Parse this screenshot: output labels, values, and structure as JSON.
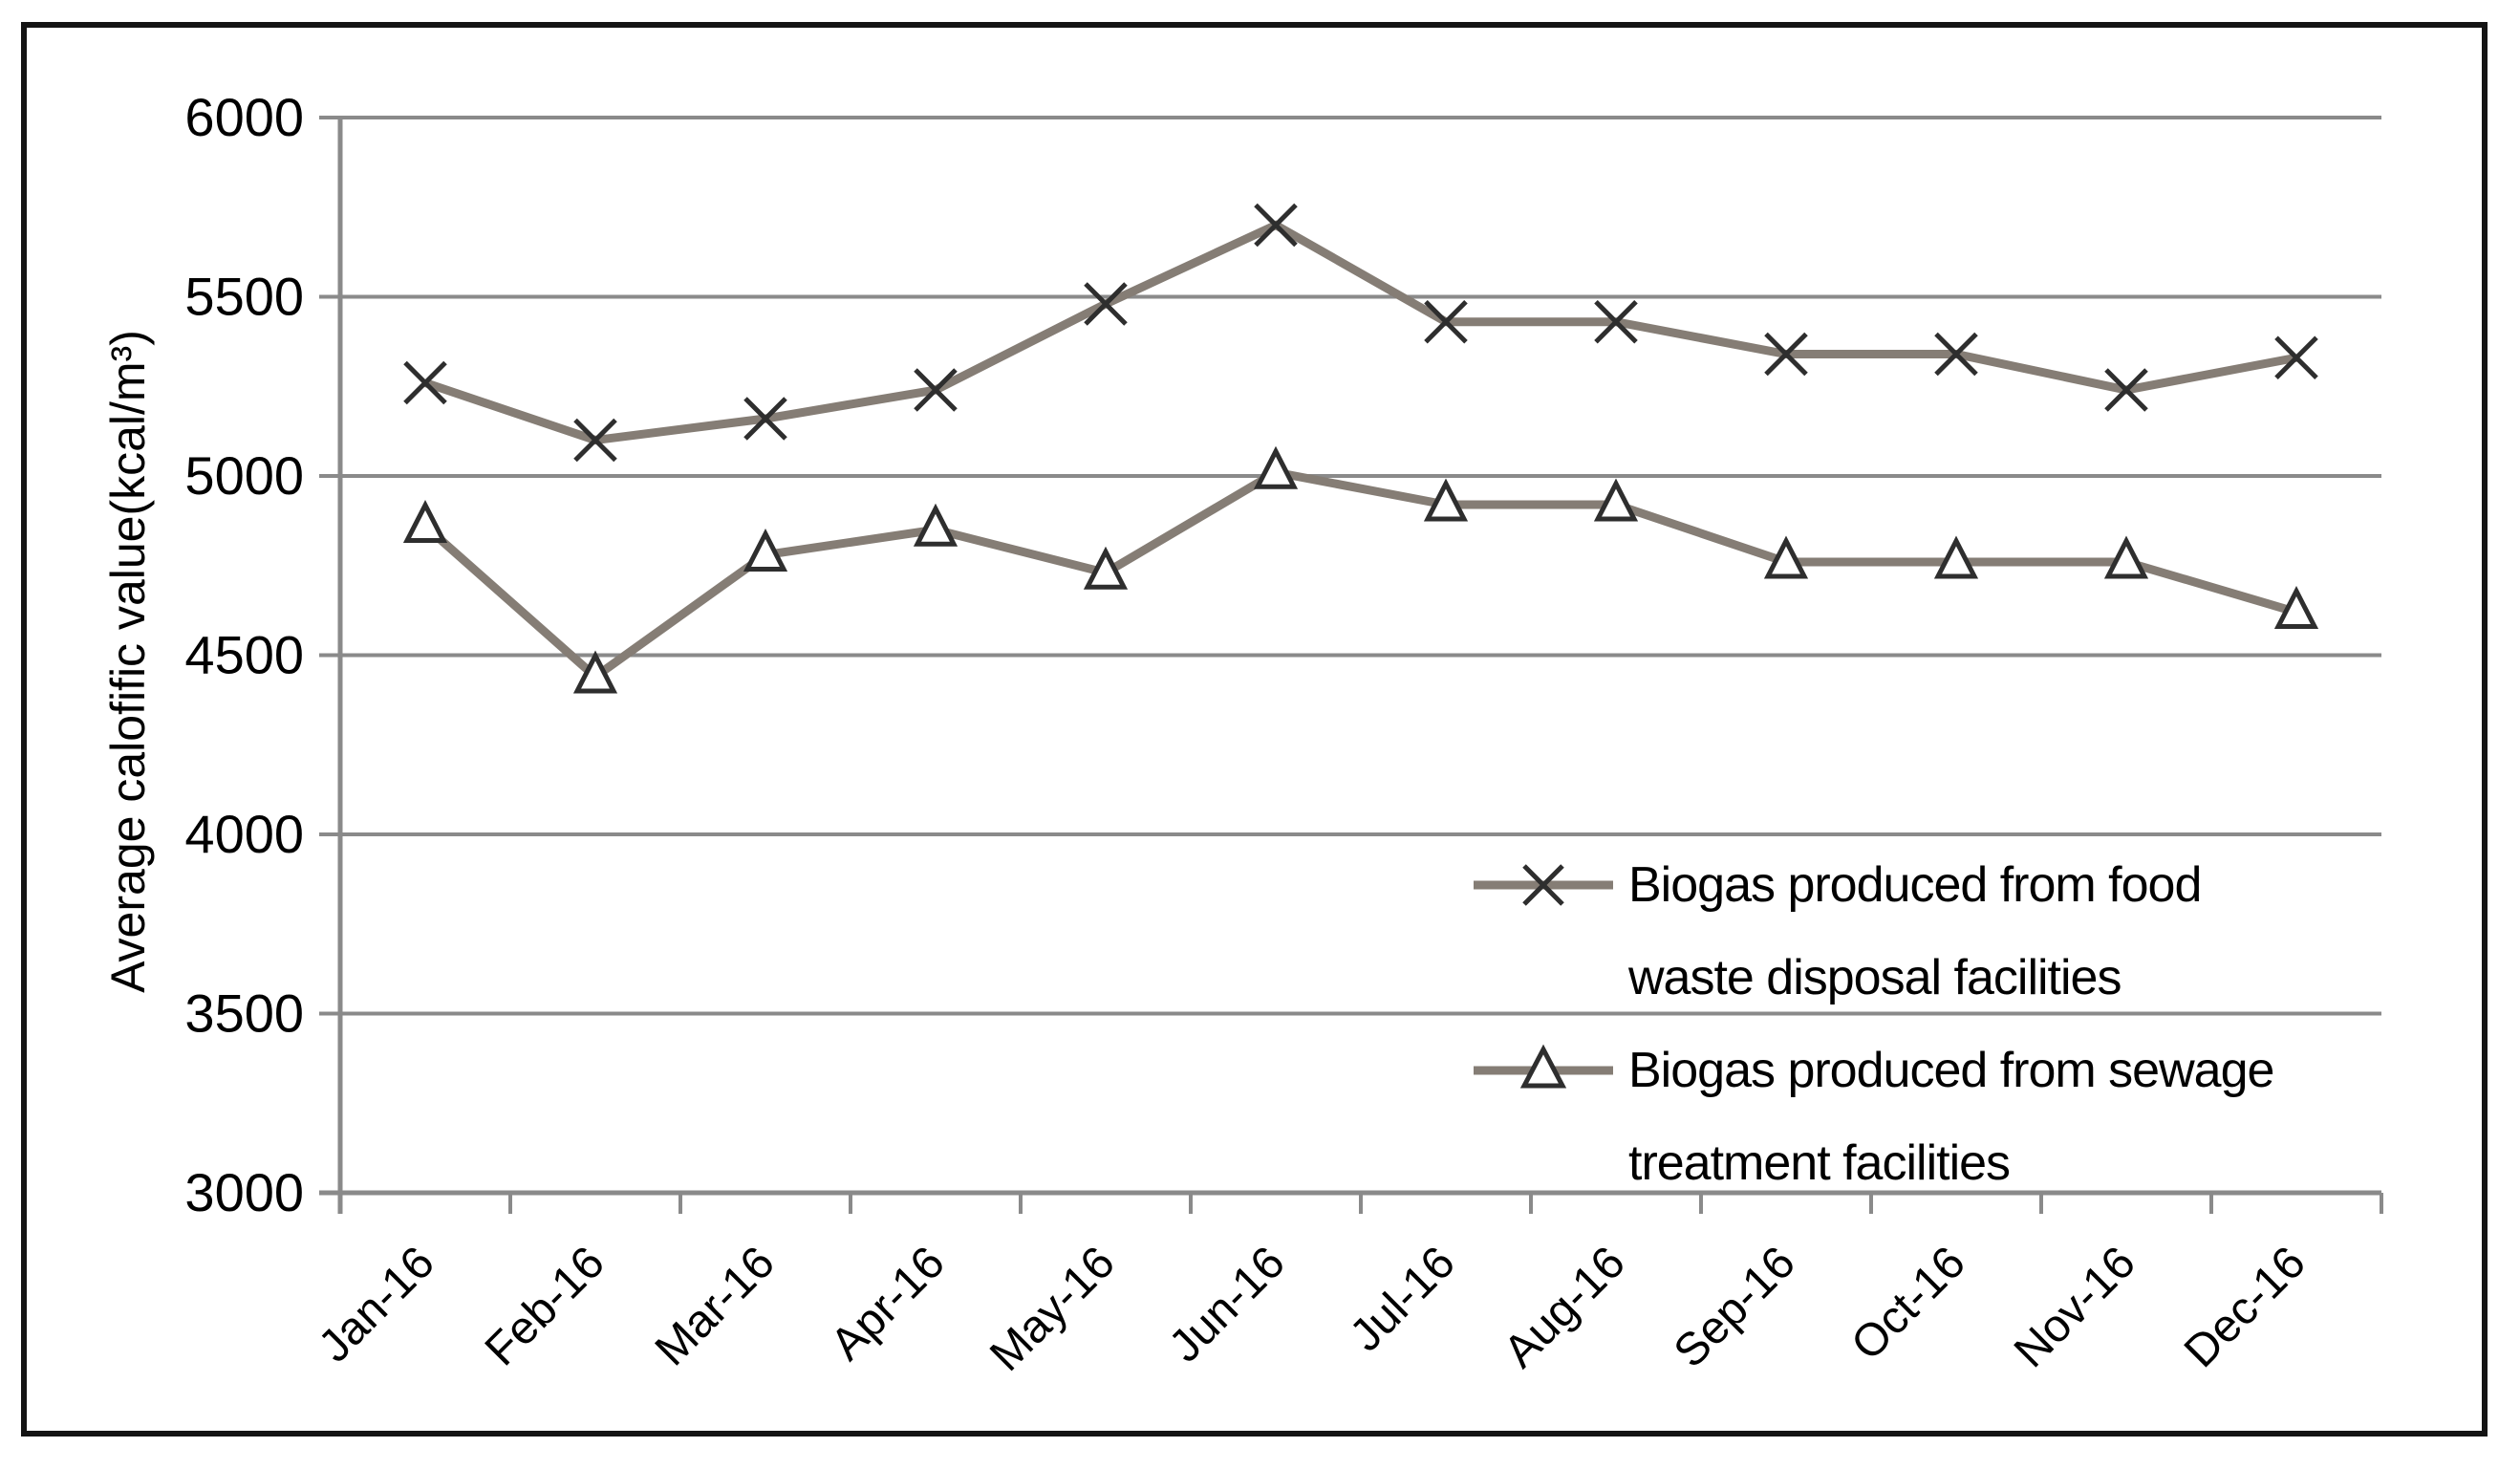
{
  "chart_data": {
    "type": "line",
    "title": "",
    "xlabel": "",
    "ylabel": "Average calofific value(kcal/m³)",
    "ylim": [
      3000,
      6000
    ],
    "ytick_step": 500,
    "yticks": [
      3000,
      3500,
      4000,
      4500,
      5000,
      5500,
      6000
    ],
    "grid": "horizontal",
    "legend_position": "inside-right",
    "categories": [
      "Jan-16",
      "Feb-16",
      "Mar-16",
      "Apr-16",
      "May-16",
      "Jun-16",
      "Jul-16",
      "Aug-16",
      "Sep-16",
      "Oct-16",
      "Nov-16",
      "Dec-16"
    ],
    "series": [
      {
        "name": "Biogas produced from food waste disposal facilities",
        "name_lines": [
          "Biogas produced from food",
          "waste disposal facilities"
        ],
        "marker": "x",
        "values": [
          5260,
          5100,
          5160,
          5240,
          5480,
          5700,
          5430,
          5430,
          5340,
          5340,
          5240,
          5330
        ]
      },
      {
        "name": "Biogas produced from sewage treatment facilities",
        "name_lines": [
          "Biogas produced from sewage",
          "treatment facilities"
        ],
        "marker": "triangle",
        "values": [
          4860,
          4440,
          4780,
          4850,
          4730,
          5010,
          4920,
          4920,
          4760,
          4760,
          4760,
          4620
        ]
      }
    ]
  },
  "colors": {
    "series_line": "#857d75",
    "marker_stroke": "#2e2e2e",
    "grid_line": "#8a8a8a",
    "axis_line": "#8a8a8a",
    "text": "#000000",
    "frame_border": "#141414",
    "marker_fill": "#ffffff"
  }
}
